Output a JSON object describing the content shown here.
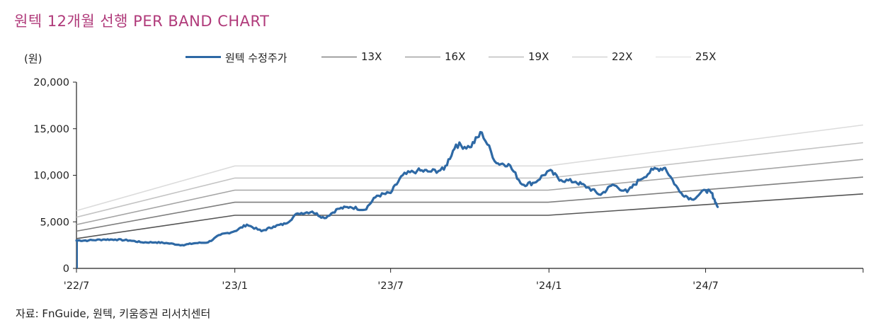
{
  "title": "원텍 12개월 선행 PER BAND CHART",
  "unit_label": "(원)",
  "source": "자료: FnGuide, 원텍, 키움증권 리서치센터",
  "chart_data": {
    "type": "line",
    "y_ticks": [
      "20,000",
      "15,000",
      "10,000",
      "5,000",
      "0"
    ],
    "ylim": [
      0,
      20000
    ],
    "x_ticks": [
      "'22/7",
      "'23/1",
      "'23/7",
      "'24/1",
      "'24/7"
    ],
    "x_tick_dates": [
      "2022-07-01",
      "2023-01-01",
      "2023-07-01",
      "2024-01-01",
      "2024-07-01"
    ],
    "xlim": [
      "2022-07-01",
      "2024-12-31"
    ],
    "grid": false,
    "legend_position": "top",
    "price_series": {
      "name": "원텍 수정주가",
      "color": "#2e69a5",
      "x": [
        "2022-07-01",
        "2022-07-15",
        "2022-08-01",
        "2022-08-15",
        "2022-09-01",
        "2022-09-15",
        "2022-10-01",
        "2022-10-15",
        "2022-11-01",
        "2022-11-15",
        "2022-12-01",
        "2022-12-15",
        "2023-01-01",
        "2023-01-15",
        "2023-02-01",
        "2023-02-15",
        "2023-03-01",
        "2023-03-15",
        "2023-04-01",
        "2023-04-15",
        "2023-05-01",
        "2023-05-15",
        "2023-06-01",
        "2023-06-15",
        "2023-07-01",
        "2023-07-15",
        "2023-08-01",
        "2023-08-15",
        "2023-09-01",
        "2023-09-15",
        "2023-10-01",
        "2023-10-15",
        "2023-11-01",
        "2023-11-15",
        "2023-12-01",
        "2023-12-15",
        "2024-01-01",
        "2024-01-15",
        "2024-02-01",
        "2024-02-15",
        "2024-03-01",
        "2024-03-15",
        "2024-04-01",
        "2024-04-15",
        "2024-05-01",
        "2024-05-15",
        "2024-06-01",
        "2024-06-15",
        "2024-07-01",
        "2024-07-08",
        "2024-07-15"
      ],
      "values": [
        3000,
        3000,
        3100,
        3100,
        3000,
        2800,
        2800,
        2700,
        2500,
        2700,
        2800,
        3600,
        4000,
        4700,
        4000,
        4500,
        4800,
        5900,
        6100,
        5400,
        6400,
        6600,
        6300,
        7800,
        8100,
        10000,
        10500,
        10400,
        10600,
        13300,
        13000,
        14600,
        11300,
        11200,
        9000,
        9200,
        10500,
        9500,
        9300,
        8700,
        7900,
        9000,
        8200,
        9500,
        10600,
        10800,
        8200,
        7400,
        8400,
        8100,
        6600
      ]
    },
    "band_series": [
      {
        "name": "13X",
        "color": "#555555",
        "x": [
          "2022-07-01",
          "2023-01-01",
          "2023-12-31",
          "2024-12-31"
        ],
        "values": [
          3200,
          5700,
          5700,
          8000
        ]
      },
      {
        "name": "16X",
        "color": "#7f7f7f",
        "x": [
          "2022-07-01",
          "2023-01-01",
          "2023-12-31",
          "2024-12-31"
        ],
        "values": [
          4000,
          7100,
          7100,
          9800
        ]
      },
      {
        "name": "19X",
        "color": "#a5a5a5",
        "x": [
          "2022-07-01",
          "2023-01-01",
          "2023-12-31",
          "2024-12-31"
        ],
        "values": [
          4700,
          8400,
          8400,
          11700
        ]
      },
      {
        "name": "22X",
        "color": "#c4c4c4",
        "x": [
          "2022-07-01",
          "2023-01-01",
          "2023-12-31",
          "2024-12-31"
        ],
        "values": [
          5500,
          9700,
          9700,
          13500
        ]
      },
      {
        "name": "25X",
        "color": "#dcdcdc",
        "x": [
          "2022-07-01",
          "2023-01-01",
          "2023-12-31",
          "2024-12-31"
        ],
        "values": [
          6200,
          11000,
          11000,
          15400
        ]
      }
    ]
  }
}
